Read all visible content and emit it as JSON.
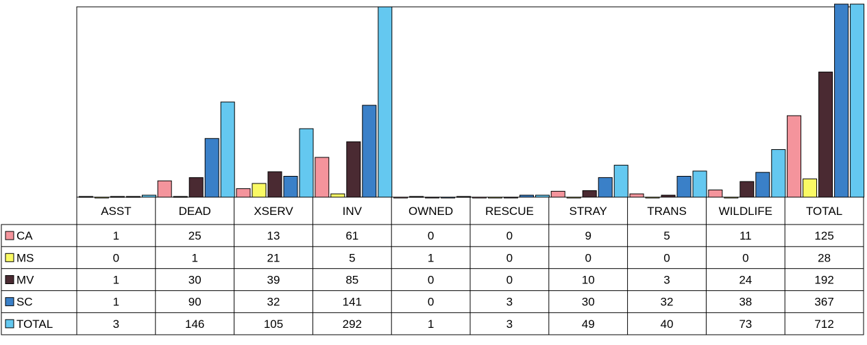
{
  "chart_data": {
    "type": "bar",
    "categories": [
      "ASST",
      "DEAD",
      "XSERV",
      "INV",
      "OWNED",
      "RESCUE",
      "STRAY",
      "TRANS",
      "WILDLIFE",
      "TOTAL"
    ],
    "series": [
      {
        "name": "CA",
        "color": "#f4949c",
        "values": [
          1,
          25,
          13,
          61,
          0,
          0,
          9,
          5,
          11,
          125
        ]
      },
      {
        "name": "MS",
        "color": "#fafa64",
        "values": [
          0,
          1,
          21,
          5,
          1,
          0,
          0,
          0,
          0,
          28
        ]
      },
      {
        "name": "MV",
        "color": "#4a2a32",
        "values": [
          1,
          30,
          39,
          85,
          0,
          0,
          10,
          3,
          24,
          192
        ]
      },
      {
        "name": "SC",
        "color": "#3a80c8",
        "values": [
          1,
          90,
          32,
          141,
          0,
          3,
          30,
          32,
          38,
          367
        ]
      },
      {
        "name": "TOTAL",
        "color": "#64c8f0",
        "values": [
          3,
          146,
          105,
          292,
          1,
          3,
          49,
          40,
          73,
          712
        ]
      }
    ],
    "ymax_visible": 292,
    "legend_position": "table-left",
    "data_table": true,
    "grid": false
  }
}
